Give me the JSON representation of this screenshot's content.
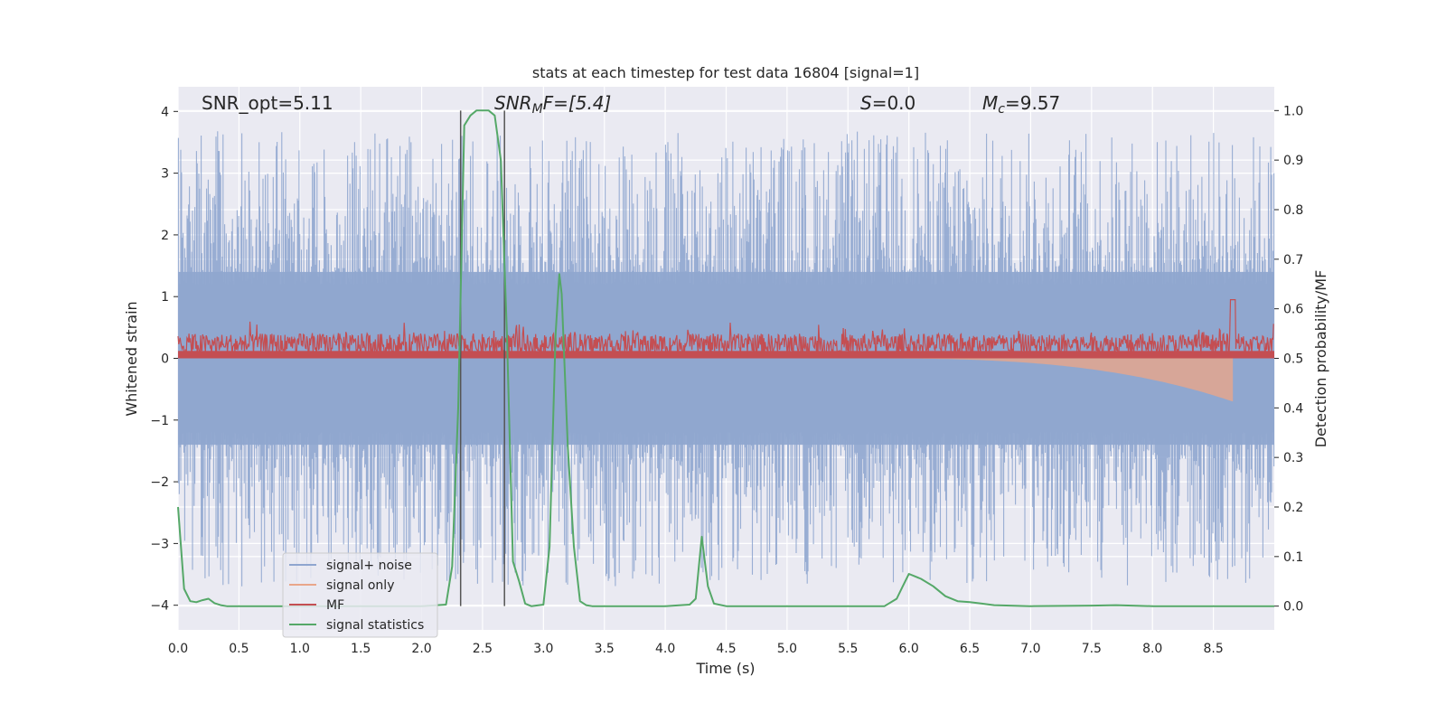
{
  "chart_data": {
    "type": "line",
    "title": "stats at each timestep for test data 16804 [signal=1]",
    "xlabel": "Time (s)",
    "ylabel_left": "Whitened strain",
    "ylabel_right": "Detection probability/MF",
    "xlim": [
      0,
      9.0
    ],
    "ylim_left": [
      -4.4,
      4.4
    ],
    "ylim_right": [
      -0.048,
      1.048
    ],
    "x_ticks": [
      "0.0",
      "0.5",
      "1.0",
      "1.5",
      "2.0",
      "2.5",
      "3.0",
      "3.5",
      "4.0",
      "4.5",
      "5.0",
      "5.5",
      "6.0",
      "6.5",
      "7.0",
      "7.5",
      "8.0",
      "8.5"
    ],
    "y_ticks_left": [
      "4",
      "3",
      "2",
      "1",
      "0",
      "−1",
      "−2",
      "−3",
      "−4"
    ],
    "y_ticks_right": [
      "1.0",
      "0.9",
      "0.8",
      "0.7",
      "0.6",
      "0.5",
      "0.4",
      "0.3",
      "0.2",
      "0.1",
      "0.0"
    ],
    "annotations": {
      "snr_opt": "SNR_opt=5.11",
      "snr_mf_name": "SNR",
      "snr_mf_sub": "M",
      "snr_mf_rest": "F=[5.4]",
      "s_name": "S",
      "s_val": "=0.0",
      "mc_name": "M",
      "mc_sub": "c",
      "mc_val": "=9.57"
    },
    "vlines": [
      2.32,
      2.68
    ],
    "series": [
      {
        "name": "signal+ noise",
        "color": "#8fa6cf",
        "axis": "left",
        "style": "noise",
        "amplitude_range": [
          -4.0,
          4.0
        ]
      },
      {
        "name": "signal only",
        "color": "#e9a68a",
        "axis": "left",
        "style": "chirp",
        "start": 5.5,
        "end": 8.66,
        "peak": -0.7
      },
      {
        "name": "MF",
        "color": "#c44e52",
        "axis": "left",
        "style": "noise_positive",
        "amplitude_range": [
          0.0,
          1.0
        ]
      },
      {
        "name": "signal statistics",
        "color": "#55a868",
        "axis": "right",
        "x": [
          0.0,
          0.05,
          0.1,
          0.15,
          0.2,
          0.25,
          0.3,
          0.35,
          0.4,
          0.5,
          1.0,
          1.5,
          2.0,
          2.2,
          2.25,
          2.3,
          2.35,
          2.4,
          2.45,
          2.5,
          2.55,
          2.6,
          2.65,
          2.7,
          2.75,
          2.8,
          2.85,
          2.9,
          3.0,
          3.05,
          3.1,
          3.13,
          3.15,
          3.2,
          3.25,
          3.3,
          3.35,
          3.4,
          3.5,
          4.0,
          4.2,
          4.25,
          4.3,
          4.35,
          4.4,
          4.5,
          5.0,
          5.5,
          5.8,
          5.9,
          5.95,
          6.0,
          6.1,
          6.2,
          6.3,
          6.4,
          6.5,
          6.6,
          6.7,
          7.0,
          7.5,
          7.7,
          8.0,
          8.5,
          9.0
        ],
        "y": [
          0.2,
          0.035,
          0.01,
          0.008,
          0.012,
          0.015,
          0.006,
          0.002,
          0.0,
          0.0,
          0.0,
          0.0,
          0.0,
          0.003,
          0.08,
          0.4,
          0.97,
          0.99,
          1.0,
          1.0,
          1.0,
          0.99,
          0.9,
          0.55,
          0.09,
          0.05,
          0.005,
          0.0,
          0.003,
          0.12,
          0.55,
          0.67,
          0.63,
          0.32,
          0.12,
          0.01,
          0.002,
          0.0,
          0.0,
          0.0,
          0.003,
          0.015,
          0.14,
          0.04,
          0.005,
          0.0,
          0.0,
          0.0,
          0.0,
          0.015,
          0.04,
          0.065,
          0.055,
          0.04,
          0.02,
          0.01,
          0.008,
          0.005,
          0.002,
          0.0,
          0.001,
          0.002,
          0.0,
          0.0,
          0.0
        ]
      }
    ],
    "legend_position": "lower-left",
    "grid": true
  }
}
